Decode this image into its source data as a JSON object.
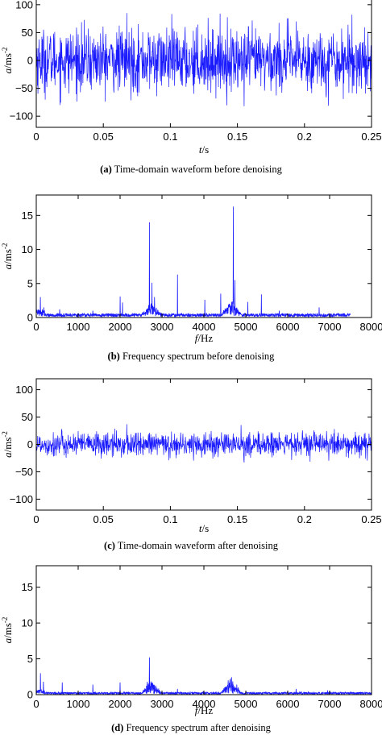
{
  "chart_data": [
    {
      "panel_id": "a",
      "type": "line",
      "caption_letter": "(a)",
      "caption_text": " Time-domain waveform before denoising",
      "xlabel_var": "t",
      "xlabel_unit": "/s",
      "ylabel_var": "a",
      "ylabel_unit": "/ms",
      "ylabel_exp": "-2",
      "xlim": [
        0,
        0.25
      ],
      "ylim": [
        -120,
        120
      ],
      "xticks": [
        0,
        0.05,
        0.1,
        0.15,
        0.2,
        0.25
      ],
      "xtick_labels": [
        "0",
        "0.05",
        "0.1",
        "0.15",
        "0.2",
        "0.25"
      ],
      "yticks": [
        -100,
        -50,
        0,
        50,
        100
      ],
      "ytick_labels": [
        "−100",
        "−50",
        "0",
        "50",
        "100"
      ],
      "color": "#1a1aff",
      "signal": {
        "kind": "noise",
        "n": 1200,
        "amplitude": 28,
        "peak": 85,
        "min": -82
      },
      "y_upper_clipped": true
    },
    {
      "panel_id": "b",
      "type": "line",
      "caption_letter": "(b)",
      "caption_text": " Frequency spectrum before denoising",
      "xlabel_var": "f",
      "xlabel_unit": "/Hz",
      "ylabel_var": "a",
      "ylabel_unit": "/ms",
      "ylabel_exp": "-2",
      "xlim": [
        0,
        8000
      ],
      "ylim": [
        0,
        18
      ],
      "xticks": [
        0,
        1000,
        2000,
        3000,
        4000,
        5000,
        6000,
        7000,
        8000
      ],
      "xtick_labels": [
        "0",
        "1000",
        "2000",
        "3000",
        "4000",
        "5000",
        "6000",
        "7000",
        "8000"
      ],
      "yticks": [
        0,
        5,
        10,
        15
      ],
      "ytick_labels": [
        "0",
        "5",
        "10",
        "15"
      ],
      "color": "#1a1aff",
      "signal": {
        "kind": "spectrum",
        "n": 1600,
        "xmax": 7500,
        "baseline": 0.35
      },
      "peaks": [
        {
          "x": 100,
          "y": 3.0
        },
        {
          "x": 180,
          "y": 1.5
        },
        {
          "x": 560,
          "y": 1.2
        },
        {
          "x": 1350,
          "y": 1.0
        },
        {
          "x": 2000,
          "y": 3.1
        },
        {
          "x": 2060,
          "y": 2.2
        },
        {
          "x": 2700,
          "y": 14.0
        },
        {
          "x": 2760,
          "y": 5.1
        },
        {
          "x": 2820,
          "y": 3.0
        },
        {
          "x": 3370,
          "y": 6.3
        },
        {
          "x": 4020,
          "y": 2.6
        },
        {
          "x": 4400,
          "y": 3.5
        },
        {
          "x": 4700,
          "y": 16.3
        },
        {
          "x": 4740,
          "y": 5.5
        },
        {
          "x": 5050,
          "y": 2.3
        },
        {
          "x": 5370,
          "y": 3.4
        },
        {
          "x": 5800,
          "y": 1.0
        },
        {
          "x": 6750,
          "y": 1.5
        }
      ]
    },
    {
      "panel_id": "c",
      "type": "line",
      "caption_letter": "(c)",
      "caption_text": " Time-domain waveform after denoising",
      "xlabel_var": "t",
      "xlabel_unit": "/s",
      "ylabel_var": "a",
      "ylabel_unit": "/ms",
      "ylabel_exp": "-2",
      "xlim": [
        0,
        0.25
      ],
      "ylim": [
        -120,
        120
      ],
      "xticks": [
        0,
        0.05,
        0.1,
        0.15,
        0.2,
        0.25
      ],
      "xtick_labels": [
        "0",
        "0.05",
        "0.1",
        "0.15",
        "0.2",
        "0.25"
      ],
      "yticks": [
        -100,
        -50,
        0,
        50,
        100
      ],
      "ytick_labels": [
        "−100",
        "−50",
        "0",
        "50",
        "100"
      ],
      "color": "#1a1aff",
      "signal": {
        "kind": "noise",
        "n": 1200,
        "amplitude": 11,
        "peak": 37,
        "min": -33
      }
    },
    {
      "panel_id": "d",
      "type": "line",
      "caption_letter": "(d)",
      "caption_text": " Frequency spectrum after denoising",
      "xlabel_var": "f",
      "xlabel_unit": "/Hz",
      "ylabel_var": "a",
      "ylabel_unit": "/ms",
      "ylabel_exp": "-2",
      "xlim": [
        0,
        8000
      ],
      "ylim": [
        0,
        18
      ],
      "xticks": [
        0,
        1000,
        2000,
        3000,
        4000,
        5000,
        6000,
        7000,
        8000
      ],
      "xtick_labels": [
        "0",
        "1000",
        "2000",
        "3000",
        "4000",
        "5000",
        "6000",
        "7000",
        "8000"
      ],
      "yticks": [
        0,
        5,
        10,
        15
      ],
      "ytick_labels": [
        "0",
        "5",
        "10",
        "15"
      ],
      "color": "#1a1aff",
      "signal": {
        "kind": "spectrum",
        "n": 1600,
        "xmax": 8000,
        "baseline": 0.2
      },
      "peaks": [
        {
          "x": 100,
          "y": 3.0
        },
        {
          "x": 170,
          "y": 1.8
        },
        {
          "x": 620,
          "y": 1.7
        },
        {
          "x": 1350,
          "y": 1.4
        },
        {
          "x": 2000,
          "y": 1.7
        },
        {
          "x": 2650,
          "y": 1.8
        },
        {
          "x": 2700,
          "y": 5.2
        },
        {
          "x": 3370,
          "y": 0.8
        },
        {
          "x": 4700,
          "y": 1.4
        },
        {
          "x": 6200,
          "y": 0.8
        },
        {
          "x": 6950,
          "y": 0.6
        }
      ]
    }
  ]
}
